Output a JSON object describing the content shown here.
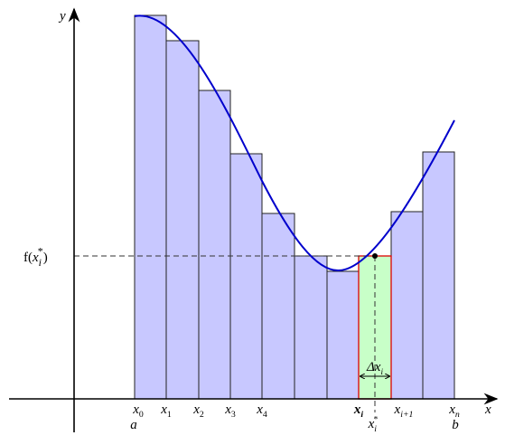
{
  "axes": {
    "y_label": "y",
    "x_label": "x"
  },
  "labels": [
    {
      "name": "f-of-xi-star",
      "parts": [
        {
          "t": "f("
        },
        {
          "t": "x"
        },
        {
          "t": "i",
          "sub": true
        },
        {
          "t": "*",
          "sup": true
        },
        {
          "t": ")"
        }
      ]
    },
    {
      "name": "x0",
      "parts": [
        {
          "t": "x"
        },
        {
          "t": "0",
          "sub": true
        }
      ]
    },
    {
      "name": "x1",
      "parts": [
        {
          "t": "x"
        },
        {
          "t": "1",
          "sub": true
        }
      ]
    },
    {
      "name": "x2",
      "parts": [
        {
          "t": "x"
        },
        {
          "t": "2",
          "sub": true
        }
      ]
    },
    {
      "name": "x3",
      "parts": [
        {
          "t": "x"
        },
        {
          "t": "3",
          "sub": true
        }
      ]
    },
    {
      "name": "x4",
      "parts": [
        {
          "t": "x"
        },
        {
          "t": "4",
          "sub": true
        }
      ]
    },
    {
      "name": "xi",
      "parts": [
        {
          "t": "x",
          "bold": true
        },
        {
          "t": "i",
          "sub": true,
          "bold": true
        }
      ]
    },
    {
      "name": "xi-plus-1",
      "parts": [
        {
          "t": "x"
        },
        {
          "t": "i+1",
          "sub": true
        }
      ]
    },
    {
      "name": "xn",
      "parts": [
        {
          "t": "x"
        },
        {
          "t": "n",
          "sub": true
        }
      ]
    },
    {
      "name": "a",
      "parts": [
        {
          "t": "a"
        }
      ]
    },
    {
      "name": "b",
      "parts": [
        {
          "t": "b"
        }
      ]
    },
    {
      "name": "xi-star",
      "parts": [
        {
          "t": "x"
        },
        {
          "t": "i",
          "sub": true
        },
        {
          "t": "*",
          "sup": true
        }
      ]
    },
    {
      "name": "delta-xi",
      "parts": [
        {
          "t": "Δx"
        },
        {
          "t": "i",
          "sub": true
        }
      ]
    }
  ]
}
